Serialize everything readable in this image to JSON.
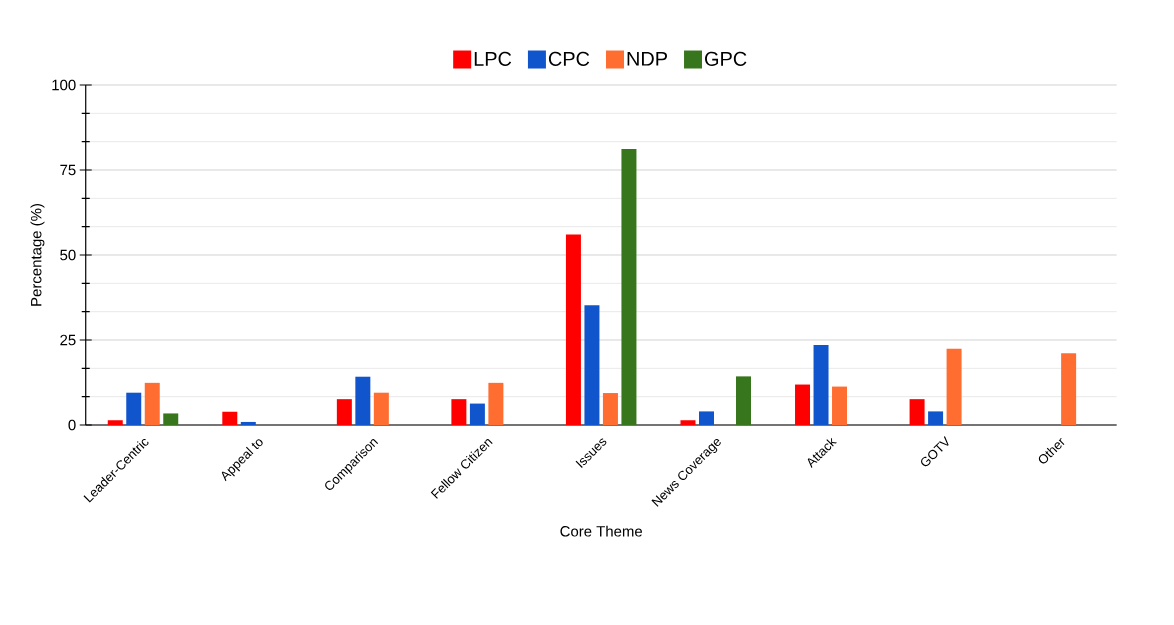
{
  "chart_data": {
    "type": "bar",
    "xlabel": "Core Theme",
    "ylabel": "Percentage (%)",
    "categories": [
      "Leader-Centric",
      "Appeal to",
      "Comparison",
      "Fellow Citizen",
      "Issues",
      "News Coverage",
      "Attack",
      "GOTV",
      "Other"
    ],
    "series": [
      {
        "name": "LPC",
        "color": "#ff0000",
        "values": [
          1.4,
          3.9,
          7.6,
          7.6,
          56.0,
          1.4,
          11.9,
          7.6,
          null
        ]
      },
      {
        "name": "CPC",
        "color": "#1155cc",
        "values": [
          9.5,
          0.9,
          14.2,
          6.3,
          35.2,
          4.0,
          23.5,
          4.0,
          null
        ]
      },
      {
        "name": "NDP",
        "color": "#ff6d31",
        "values": [
          12.4,
          null,
          9.5,
          12.4,
          9.4,
          null,
          11.3,
          22.4,
          21.1
        ]
      },
      {
        "name": "GPC",
        "color": "#38761d",
        "values": [
          3.4,
          null,
          null,
          null,
          81.2,
          14.3,
          null,
          null,
          null
        ]
      }
    ],
    "ylim": [
      0,
      100
    ],
    "yticks": [
      0,
      25,
      50,
      75,
      100
    ],
    "grid": "y",
    "legend": "top"
  }
}
